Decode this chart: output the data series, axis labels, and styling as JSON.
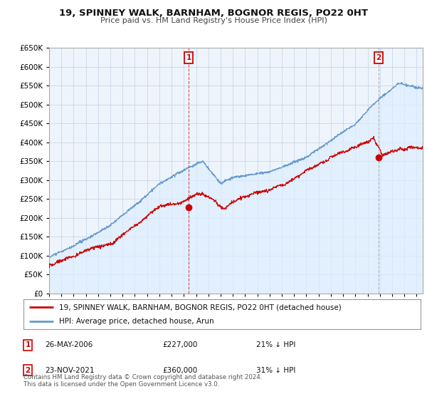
{
  "title": "19, SPINNEY WALK, BARNHAM, BOGNOR REGIS, PO22 0HT",
  "subtitle": "Price paid vs. HM Land Registry's House Price Index (HPI)",
  "legend_line1": "19, SPINNEY WALK, BARNHAM, BOGNOR REGIS, PO22 0HT (detached house)",
  "legend_line2": "HPI: Average price, detached house, Arun",
  "annotation1_date": "26-MAY-2006",
  "annotation1_price": "£227,000",
  "annotation1_hpi": "21% ↓ HPI",
  "annotation2_date": "23-NOV-2021",
  "annotation2_price": "£360,000",
  "annotation2_hpi": "31% ↓ HPI",
  "footer": "Contains HM Land Registry data © Crown copyright and database right 2024.\nThis data is licensed under the Open Government Licence v3.0.",
  "hpi_color": "#6699cc",
  "hpi_fill_color": "#ddeeff",
  "price_color": "#cc0000",
  "annotation_box_color": "#cc0000",
  "vline1_color": "#cc4444",
  "vline2_color": "#aaaaaa",
  "ylim": [
    0,
    650000
  ],
  "yticks": [
    0,
    50000,
    100000,
    150000,
    200000,
    250000,
    300000,
    350000,
    400000,
    450000,
    500000,
    550000,
    600000,
    650000
  ],
  "xlim_start": 1995.0,
  "xlim_end": 2025.5,
  "sale1_x": 2006.39,
  "sale1_y": 227000,
  "sale2_x": 2021.9,
  "sale2_y": 360000,
  "background_color": "#ffffff",
  "chart_bg_color": "#eef4fb",
  "grid_color": "#c8d8e8"
}
